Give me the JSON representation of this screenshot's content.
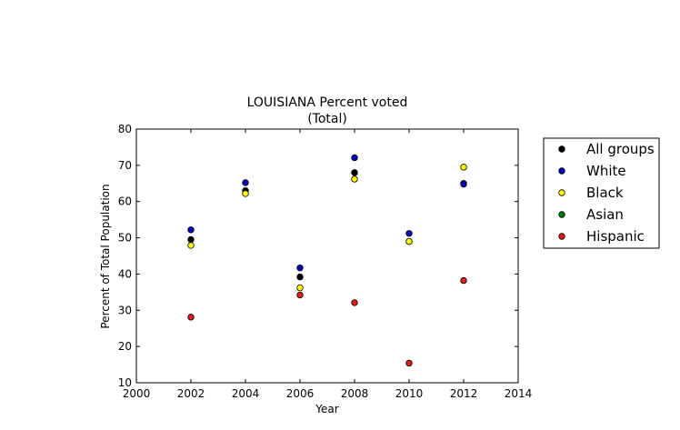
{
  "chart_data": {
    "type": "scatter",
    "title": "LOUISIANA Percent voted",
    "subtitle": "(Total)",
    "xlabel": "Year",
    "ylabel": "Percent of Total Population",
    "xlim": [
      2000,
      2014
    ],
    "ylim": [
      10,
      80
    ],
    "xticks": [
      2000,
      2002,
      2004,
      2006,
      2008,
      2010,
      2012,
      2014
    ],
    "yticks": [
      10,
      20,
      30,
      40,
      50,
      60,
      70,
      80
    ],
    "grid": false,
    "legend_position": "right-outside",
    "series": [
      {
        "name": "All groups",
        "color": "#000000",
        "x": [
          2002,
          2004,
          2006,
          2008,
          2010,
          2012
        ],
        "y": [
          49.5,
          63.0,
          39.2,
          68.0,
          49.0,
          65.0
        ]
      },
      {
        "name": "White",
        "color": "#0000bf",
        "x": [
          2002,
          2004,
          2006,
          2008,
          2010,
          2012
        ],
        "y": [
          52.2,
          65.2,
          41.7,
          72.1,
          51.2,
          64.8
        ]
      },
      {
        "name": "Black",
        "color": "#ffff00",
        "x": [
          2002,
          2004,
          2006,
          2008,
          2010,
          2012
        ],
        "y": [
          47.9,
          62.2,
          36.2,
          66.2,
          49.0,
          69.5
        ]
      },
      {
        "name": "Asian",
        "color": "#008000",
        "x": [],
        "y": []
      },
      {
        "name": "Hispanic",
        "color": "#e41a1c",
        "x": [
          2002,
          2006,
          2008,
          2010,
          2012
        ],
        "y": [
          28.1,
          34.2,
          32.1,
          15.4,
          38.2
        ]
      }
    ]
  }
}
